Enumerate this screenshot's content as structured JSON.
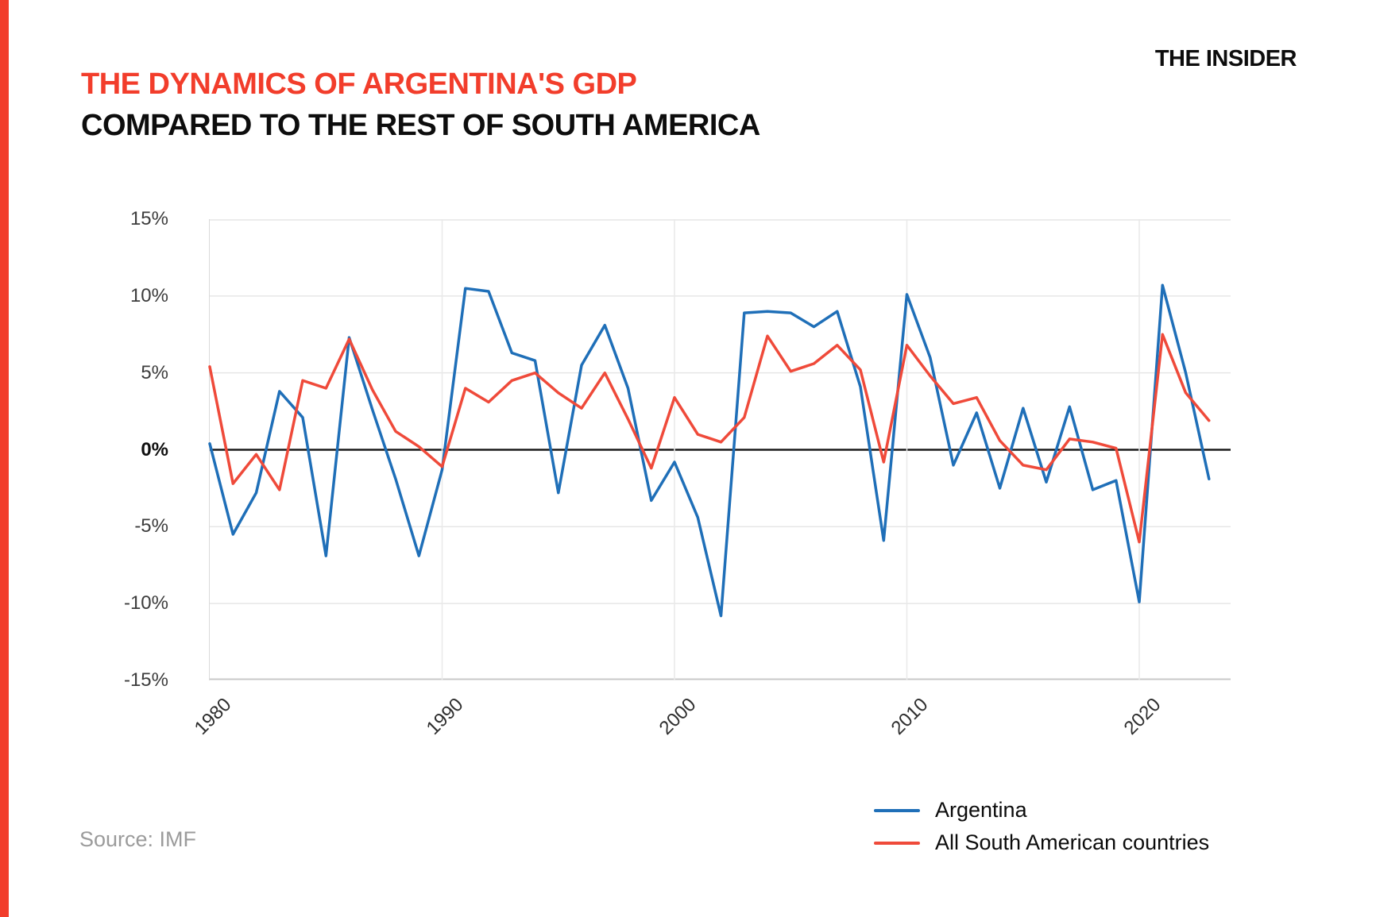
{
  "page": {
    "logo": "THE INSIDER",
    "source": "Source: IMF",
    "accent_red": "#F23D2B"
  },
  "title": {
    "line1": "THE DYNAMICS OF ARGENTINA'S GDP",
    "line2": "COMPARED TO THE REST OF SOUTH AMERICA"
  },
  "chart_data": {
    "type": "line",
    "title": "The dynamics of Argentina's GDP compared to the rest of South America",
    "xlabel": "",
    "ylabel": "",
    "grid": true,
    "legend_position": "bottom-right",
    "ylim": [
      -15,
      15
    ],
    "x": [
      1980,
      1981,
      1982,
      1983,
      1984,
      1985,
      1986,
      1987,
      1988,
      1989,
      1990,
      1991,
      1992,
      1993,
      1994,
      1995,
      1996,
      1997,
      1998,
      1999,
      2000,
      2001,
      2002,
      2003,
      2004,
      2005,
      2006,
      2007,
      2008,
      2009,
      2010,
      2011,
      2012,
      2013,
      2014,
      2015,
      2016,
      2017,
      2018,
      2019,
      2020,
      2021,
      2022,
      2023
    ],
    "series": [
      {
        "name": "Argentina",
        "color": "#1F6FB8",
        "values": [
          0.4,
          -5.5,
          -2.8,
          3.8,
          2.1,
          -6.9,
          7.3,
          2.6,
          -1.9,
          -6.9,
          -1.3,
          10.5,
          10.3,
          6.3,
          5.8,
          -2.8,
          5.5,
          8.1,
          4.0,
          -3.3,
          -0.8,
          -4.4,
          -10.8,
          8.9,
          9.0,
          8.9,
          8.0,
          9.0,
          4.1,
          -5.9,
          10.1,
          6.0,
          -1.0,
          2.4,
          -2.5,
          2.7,
          -2.1,
          2.8,
          -2.6,
          -2.0,
          -9.9,
          10.7,
          5.0,
          -1.9
        ]
      },
      {
        "name": "All South American countries",
        "color": "#EF4A3A",
        "values": [
          5.4,
          -2.2,
          -0.3,
          -2.6,
          4.5,
          4.0,
          7.2,
          3.9,
          1.2,
          0.2,
          -1.1,
          4.0,
          3.1,
          4.5,
          5.0,
          3.7,
          2.7,
          5.0,
          2.0,
          -1.2,
          3.4,
          1.0,
          0.5,
          2.1,
          7.4,
          5.1,
          5.6,
          6.8,
          5.2,
          -0.8,
          6.8,
          4.8,
          3.0,
          3.4,
          0.6,
          -1.0,
          -1.3,
          0.7,
          0.5,
          0.1,
          -6.0,
          7.5,
          3.7,
          1.9
        ]
      }
    ],
    "yticks": [
      {
        "label": "15%",
        "value": 15
      },
      {
        "label": "10%",
        "value": 10
      },
      {
        "label": "5%",
        "value": 5
      },
      {
        "label": "0%",
        "value": 0
      },
      {
        "label": "-5%",
        "value": -5
      },
      {
        "label": "-10%",
        "value": -10
      },
      {
        "label": "-15%",
        "value": -15
      }
    ],
    "xticks": [
      {
        "label": "1980",
        "year": 1980
      },
      {
        "label": "1990",
        "year": 1990
      },
      {
        "label": "2000",
        "year": 2000
      },
      {
        "label": "2010",
        "year": 2010
      },
      {
        "label": "2020",
        "year": 2020
      }
    ]
  }
}
